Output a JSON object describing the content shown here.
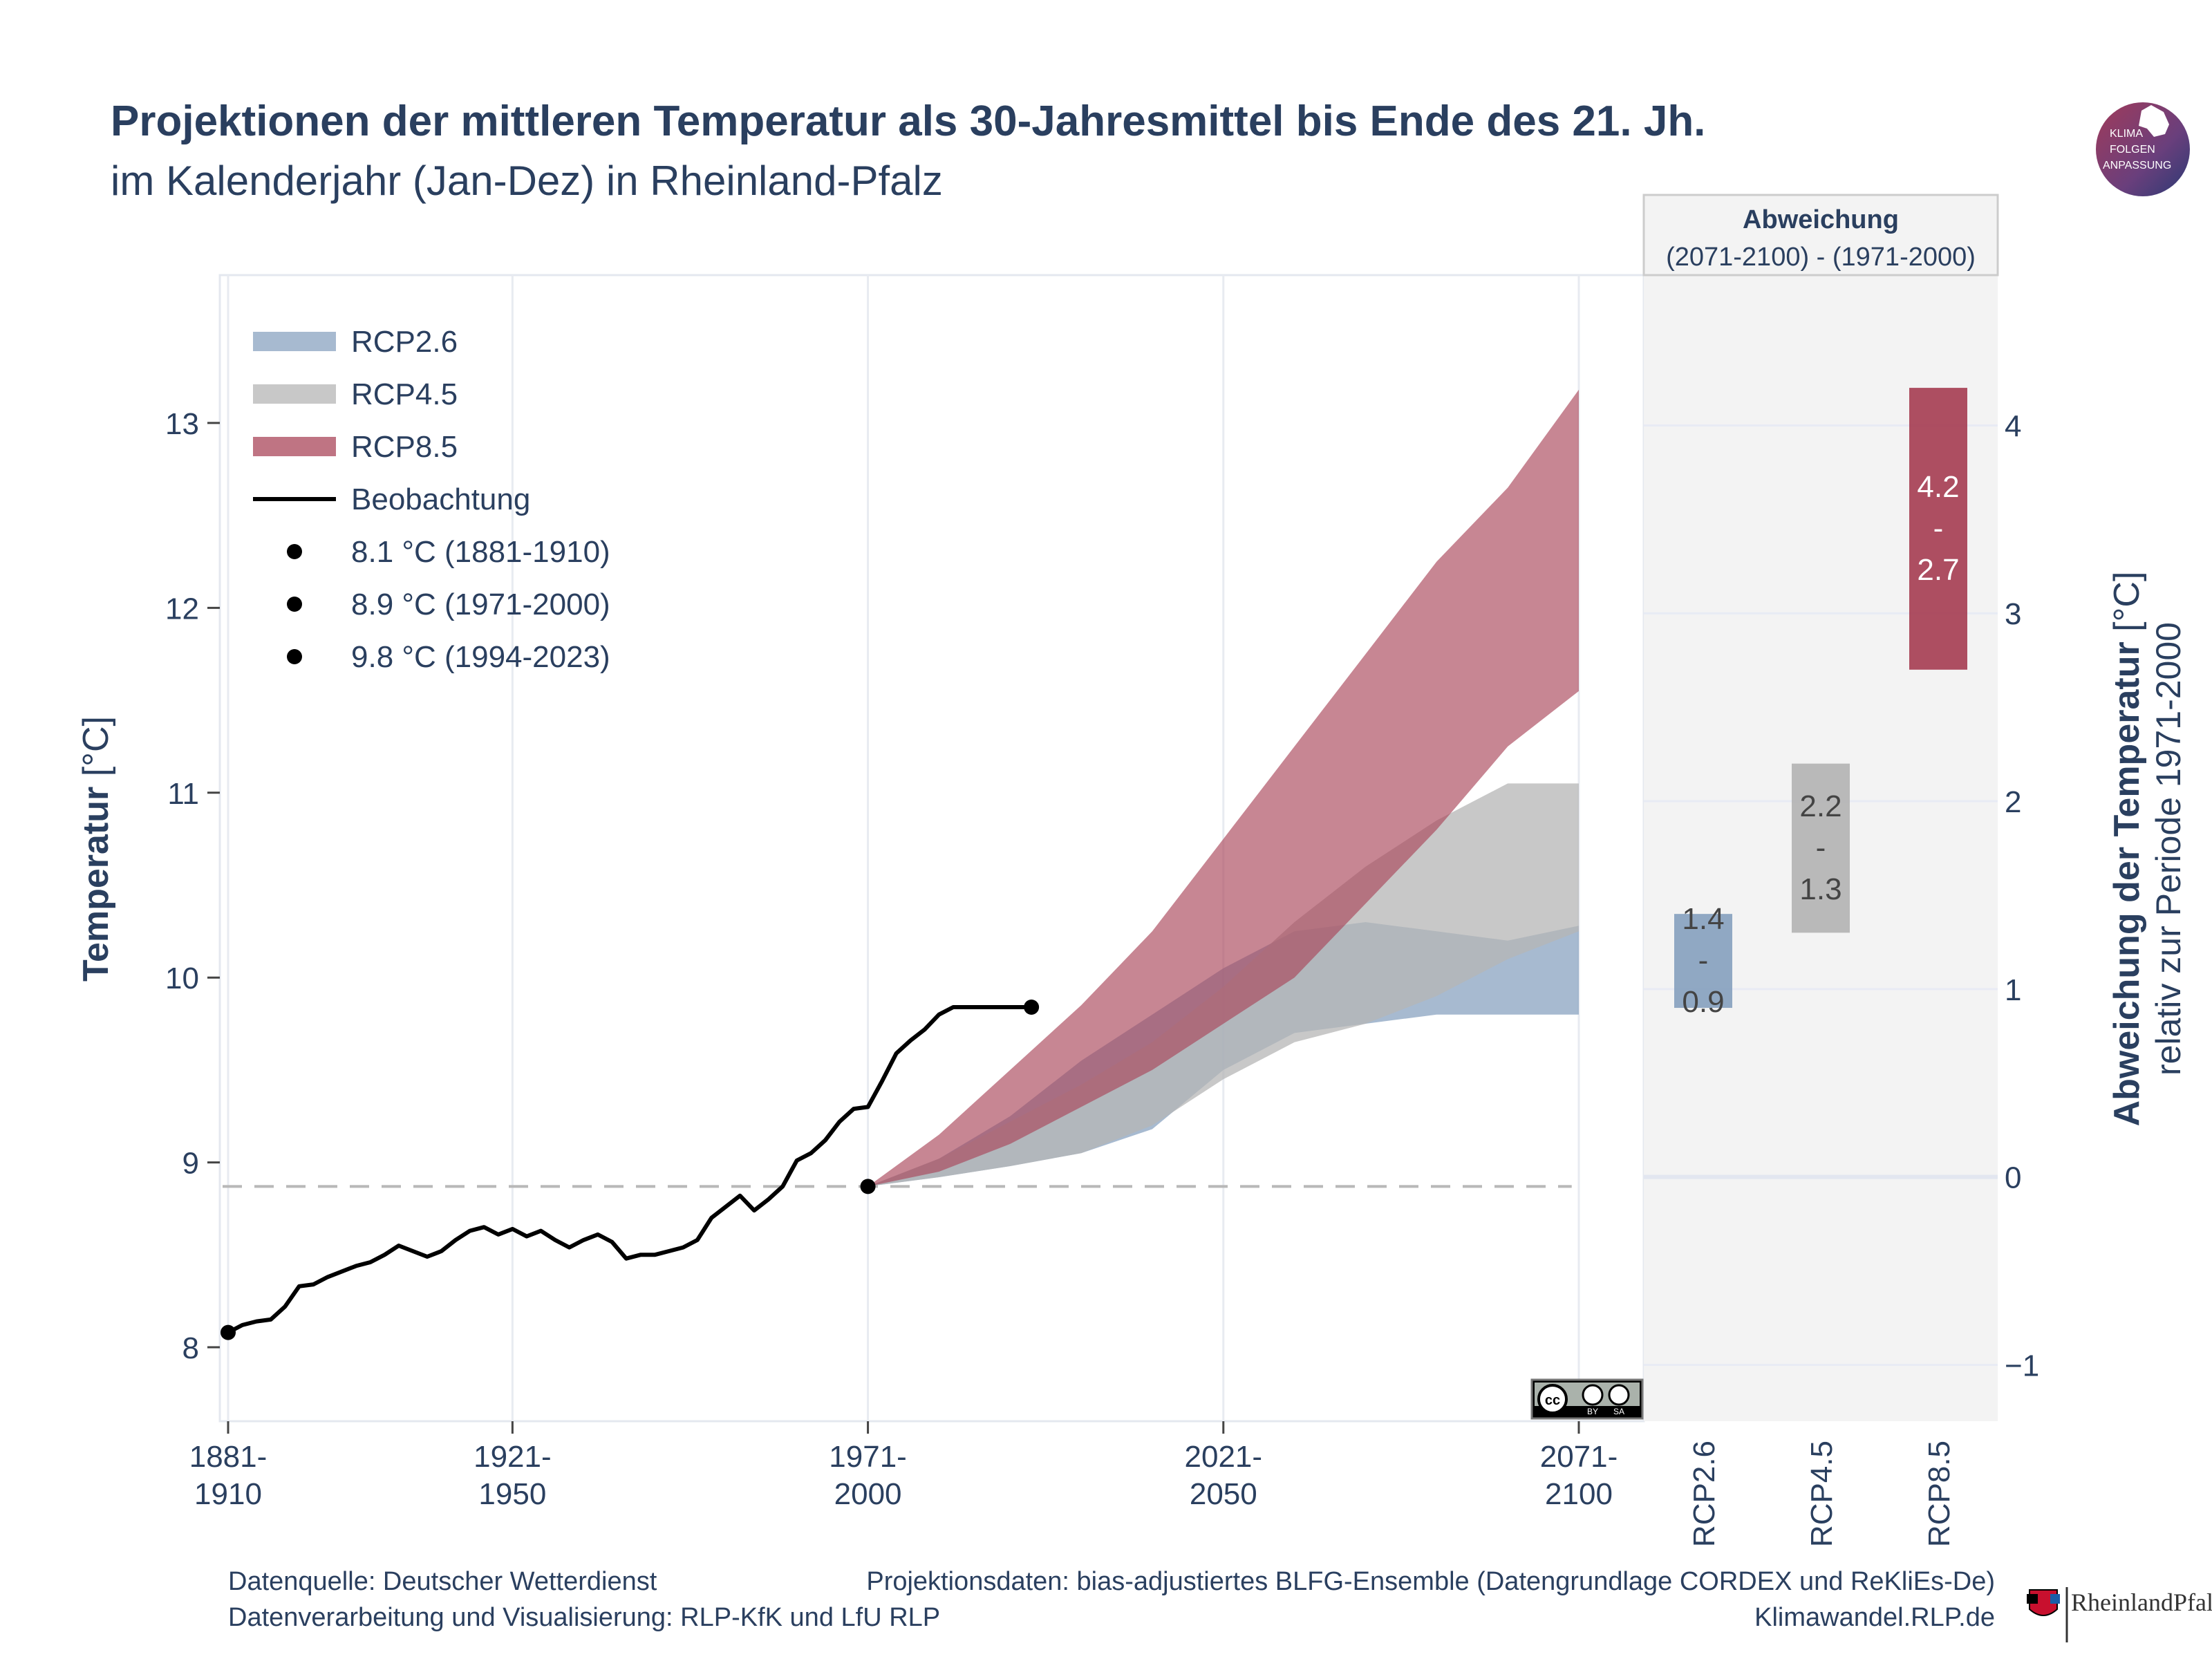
{
  "header": {
    "title": "Projektionen der mittleren Temperatur als 30-Jahresmittel bis Ende des 21. Jh.",
    "subtitle": "im Kalenderjahr (Jan-Dez) in Rheinland-Pfalz"
  },
  "logo_top": {
    "lines": [
      "KLIMA",
      "FOLGEN",
      "ANPASSUNG"
    ]
  },
  "logo_bottom": {
    "text": "RheinlandPfalz"
  },
  "cc_badge": {
    "labels": [
      "BY",
      "SA"
    ]
  },
  "footer": {
    "source": "Datenquelle:  Deutscher Wetterdienst",
    "processing": "Datenverarbeitung und Visualisierung: RLP-KfK und LfU RLP",
    "projection": "Projektionsdaten: bias-adjustiertes BLFG-Ensemble (Datengrundlage CORDEX und ReKliEs-De)",
    "website": "Klimawandel.RLP.de"
  },
  "colors": {
    "rcp26": "#8aa3c0",
    "rcp45": "#b5b5b5",
    "rcp85": "#a94559",
    "observation": "#000000",
    "title": "#2a3f5f",
    "panel_bg": "#f3f3f3"
  },
  "chart_data": [
    {
      "type": "area",
      "ylabel_bold": "Temperatur",
      "ylabel_unit": " [°C]",
      "ylim": [
        7.6,
        13.8
      ],
      "yticks": [
        8,
        9,
        10,
        11,
        12,
        13
      ],
      "x_range": [
        1895,
        2085
      ],
      "x_ticks": [
        {
          "x": 1895,
          "line1": "1881-",
          "line2": "1910"
        },
        {
          "x": 1935,
          "line1": "1921-",
          "line2": "1950"
        },
        {
          "x": 1985,
          "line1": "1971-",
          "line2": "2000"
        },
        {
          "x": 2035,
          "line1": "2021-",
          "line2": "2050"
        },
        {
          "x": 2085,
          "line1": "2071-",
          "line2": "2100"
        }
      ],
      "reference_line": 8.87,
      "legend": [
        {
          "key": "rcp26",
          "kind": "band",
          "label": "RCP2.6"
        },
        {
          "key": "rcp45",
          "kind": "band",
          "label": "RCP4.5"
        },
        {
          "key": "rcp85",
          "kind": "band",
          "label": "RCP8.5"
        },
        {
          "key": "obs",
          "kind": "line",
          "label": "Beobachtung"
        },
        {
          "key": "p1",
          "kind": "dot",
          "label": "8.1 °C (1881-1910)"
        },
        {
          "key": "p2",
          "kind": "dot",
          "label": "8.9 °C (1971-2000)"
        },
        {
          "key": "p3",
          "kind": "dot",
          "label": "9.8 °C (1994-2023)"
        }
      ],
      "observation": {
        "x": [
          1895,
          1897,
          1899,
          1901,
          1903,
          1905,
          1907,
          1909,
          1911,
          1913,
          1915,
          1917,
          1919,
          1921,
          1923,
          1925,
          1927,
          1929,
          1931,
          1933,
          1935,
          1937,
          1939,
          1941,
          1943,
          1945,
          1947,
          1949,
          1951,
          1953,
          1955,
          1957,
          1959,
          1961,
          1963,
          1965,
          1967,
          1969,
          1971,
          1973,
          1975,
          1977,
          1979,
          1981,
          1983,
          1985,
          1987,
          1989,
          1991,
          1993,
          1995,
          1997,
          1999,
          2001,
          2003,
          2005,
          2007,
          2008
        ],
        "y": [
          8.08,
          8.12,
          8.14,
          8.15,
          8.22,
          8.33,
          8.34,
          8.38,
          8.41,
          8.44,
          8.46,
          8.5,
          8.55,
          8.52,
          8.49,
          8.52,
          8.58,
          8.63,
          8.65,
          8.61,
          8.64,
          8.6,
          8.63,
          8.58,
          8.54,
          8.58,
          8.61,
          8.57,
          8.48,
          8.5,
          8.5,
          8.52,
          8.54,
          8.58,
          8.7,
          8.76,
          8.82,
          8.74,
          8.8,
          8.87,
          9.01,
          9.05,
          9.12,
          9.22,
          9.29,
          9.3,
          9.44,
          9.59,
          9.66,
          9.72,
          9.8,
          9.84,
          9.84,
          9.84,
          9.84,
          9.84,
          9.84,
          9.84
        ]
      },
      "observation_points": [
        {
          "x": 1895,
          "y": 8.08
        },
        {
          "x": 1985,
          "y": 8.87
        },
        {
          "x": 2008,
          "y": 9.84
        }
      ],
      "bands": {
        "x": [
          1985,
          1995,
          2005,
          2015,
          2025,
          2035,
          2045,
          2055,
          2065,
          2075,
          2085
        ],
        "rcp26": {
          "upper": [
            8.87,
            9.02,
            9.25,
            9.55,
            9.8,
            10.05,
            10.25,
            10.3,
            10.25,
            10.2,
            10.28
          ],
          "lower": [
            8.87,
            8.92,
            8.98,
            9.05,
            9.18,
            9.5,
            9.7,
            9.75,
            9.8,
            9.8,
            9.8
          ]
        },
        "rcp45": {
          "upper": [
            8.87,
            9.02,
            9.22,
            9.42,
            9.65,
            9.95,
            10.3,
            10.6,
            10.85,
            11.05,
            11.05
          ],
          "lower": [
            8.87,
            8.92,
            8.98,
            9.05,
            9.2,
            9.45,
            9.65,
            9.75,
            9.9,
            10.1,
            10.25
          ]
        },
        "rcp85": {
          "upper": [
            8.87,
            9.15,
            9.5,
            9.85,
            10.25,
            10.75,
            11.25,
            11.75,
            12.25,
            12.65,
            13.18
          ],
          "lower": [
            8.87,
            8.95,
            9.1,
            9.3,
            9.5,
            9.75,
            10.0,
            10.4,
            10.8,
            11.25,
            11.55
          ]
        }
      }
    },
    {
      "type": "bar",
      "panel_title": "Abweichung",
      "panel_subtitle": "(2071-2100) - (1971-2000)",
      "ylabel_bold": "Abweichung der Temperatur",
      "ylabel_unit": " [°C]",
      "ylabel2": "relativ zur Periode 1971-2000",
      "ylim": [
        -1.3,
        4.8
      ],
      "yticks": [
        -1,
        0,
        1,
        2,
        3,
        4
      ],
      "ytick_labels": [
        "−1",
        "0",
        "1",
        "2",
        "3",
        "4"
      ],
      "categories": [
        "RCP2.6",
        "RCP4.5",
        "RCP8.5"
      ],
      "ranges": [
        {
          "key": "rcp26",
          "min": 0.9,
          "max": 1.4,
          "label_max": "1.4",
          "label_sep": "-",
          "label_min": "0.9"
        },
        {
          "key": "rcp45",
          "min": 1.3,
          "max": 2.2,
          "label_max": "2.2",
          "label_sep": "-",
          "label_min": "1.3"
        },
        {
          "key": "rcp85",
          "min": 2.7,
          "max": 4.2,
          "label_max": "4.2",
          "label_sep": "-",
          "label_min": "2.7"
        }
      ]
    }
  ]
}
